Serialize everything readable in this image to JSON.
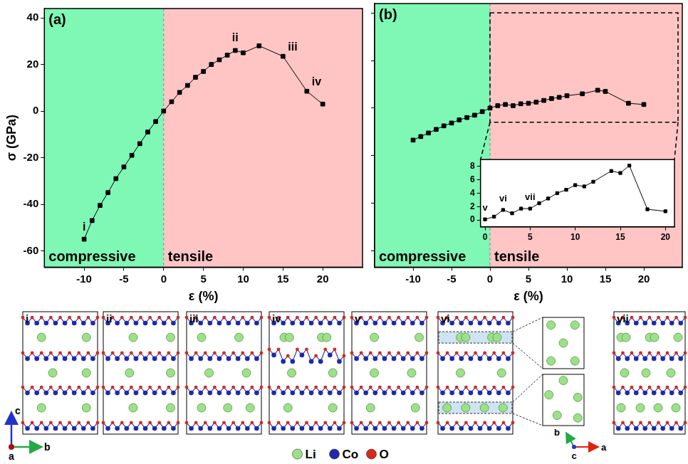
{
  "chart_data": [
    {
      "type": "line",
      "title": "(a)",
      "x_label": "ε (%)",
      "y_label": "σ (GPa)",
      "x": [
        -10,
        -9,
        -8,
        -7,
        -6,
        -5,
        -4,
        -3,
        -2,
        -1,
        0,
        1,
        2,
        3,
        4,
        5,
        6,
        7,
        8,
        9,
        10,
        12,
        15,
        18,
        20
      ],
      "series": [
        {
          "color": "#000000",
          "marker": "square",
          "values": [
            -55,
            -47,
            -40.5,
            -35,
            -29,
            -24,
            -19,
            -14,
            -9,
            -4.5,
            0,
            4,
            8,
            11,
            14.5,
            17,
            20,
            22,
            24,
            26,
            25,
            28,
            23.5,
            8.5,
            3
          ]
        }
      ],
      "xlim": [
        -15,
        25
      ],
      "xticks": [
        -10,
        -5,
        0,
        5,
        10,
        15,
        20
      ],
      "ylim": [
        -67,
        44
      ],
      "yticks": [
        -60,
        -40,
        -20,
        0,
        20,
        40
      ],
      "grid": false,
      "regions": [
        {
          "label": "compressive",
          "xrange": [
            -15,
            0
          ],
          "color": "#7ff7b5"
        },
        {
          "label": "tensile",
          "xrange": [
            0,
            25
          ],
          "color": "#ffc5c5"
        }
      ],
      "annotations": [
        {
          "text": "i",
          "x": -10,
          "y": -55
        },
        {
          "text": "ii",
          "x": 9,
          "y": 26
        },
        {
          "text": "iii",
          "x": 15,
          "y": 23.5
        },
        {
          "text": "iv",
          "x": 18,
          "y": 8.5
        }
      ]
    },
    {
      "type": "line",
      "title": "(b)",
      "x_label": "ε (%)",
      "x": [
        -10,
        -9,
        -8,
        -7,
        -6,
        -5,
        -4,
        -3,
        -2,
        -1,
        0,
        1,
        2,
        3,
        4,
        5,
        6,
        7,
        8,
        9,
        10,
        12,
        14,
        15,
        18,
        20
      ],
      "series": [
        {
          "color": "#000000",
          "marker": "square",
          "values": [
            -13.5,
            -12,
            -10.5,
            -9,
            -7.5,
            -6.3,
            -5,
            -4,
            -3,
            -1.5,
            0,
            1,
            1.5,
            1,
            1.8,
            2,
            2.5,
            3.2,
            4,
            4.5,
            5.2,
            6,
            7.5,
            7,
            2,
            1.5
          ]
        }
      ],
      "xlim": [
        -15,
        25
      ],
      "xticks": [
        -10,
        -5,
        0,
        5,
        10,
        15,
        20
      ],
      "ylim": [
        -67,
        44
      ],
      "yticks": [
        -60,
        -40,
        -20,
        0,
        20,
        40
      ],
      "grid": false,
      "tick_labels": "x",
      "regions": [
        {
          "label": "compressive",
          "xrange": [
            -15,
            0
          ],
          "color": "#7ff7b5"
        },
        {
          "label": "tensile",
          "xrange": [
            0,
            25
          ],
          "color": "#ffc5c5"
        }
      ]
    },
    {
      "type": "line",
      "x": [
        0,
        1,
        2,
        3,
        4,
        5,
        6,
        7,
        8,
        9,
        10,
        11,
        12,
        14,
        15,
        16,
        18,
        20
      ],
      "series": [
        {
          "color": "#000000",
          "marker": "square",
          "values": [
            0.1,
            0.5,
            1.5,
            1,
            1.7,
            1.7,
            2.5,
            3.2,
            4,
            4.5,
            5.2,
            5,
            5.7,
            7.3,
            7,
            8.1,
            1.6,
            1.3
          ]
        }
      ],
      "xlim": [
        -0.5,
        21
      ],
      "xticks": [
        0,
        5,
        10,
        15,
        20
      ],
      "ylim": [
        -1,
        9
      ],
      "yticks": [
        0,
        2,
        4,
        6,
        8
      ],
      "grid": false,
      "annotations": [
        {
          "text": "v",
          "x": 0,
          "y": 0.1
        },
        {
          "text": "vi",
          "x": 2,
          "y": 1.5
        },
        {
          "text": "vii",
          "x": 5,
          "y": 1.7
        }
      ]
    }
  ],
  "structures": {
    "panels": [
      "i",
      "ii",
      "iii",
      "iv",
      "v",
      "vi",
      "vii"
    ],
    "axes": {
      "vertical": "c",
      "horizontal": "b",
      "out_of_plane": "a"
    },
    "zoom_axes": {
      "vertical": "b",
      "horizontal": "a",
      "out_of_plane": "c"
    },
    "legend": [
      {
        "label": "Li",
        "color": "#9ee08a"
      },
      {
        "label": "Co",
        "color": "#1f2aa8"
      },
      {
        "label": "O",
        "color": "#d42a1a"
      }
    ]
  }
}
